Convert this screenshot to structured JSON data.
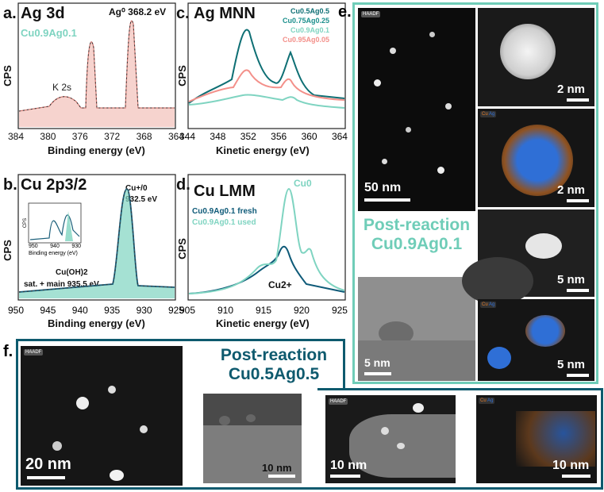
{
  "panel_a": {
    "letter": "a.",
    "title": "Ag 3d",
    "peak_label": "Ag⁰ 368.2 eV",
    "sample": "Cu0.9Ag0.1",
    "annotation": "K 2s",
    "ylabel": "CPS",
    "xlabel": "Binding energy (eV)",
    "xticks": [
      "384",
      "380",
      "376",
      "372",
      "368",
      "364"
    ],
    "colors": {
      "sample": "#7fd4c1",
      "fit": "#f4b6b0"
    }
  },
  "panel_b": {
    "letter": "b.",
    "title": "Cu 2p3/2",
    "peak_label_1": "Cu+/0",
    "peak_label_2": "932.5 eV",
    "annot_1": "Cu(OH)2",
    "annot_2": "sat. + main 935.5 eV",
    "ylabel": "CPS",
    "xlabel": "Binding energy (eV)",
    "xticks": [
      "950",
      "945",
      "940",
      "935",
      "930",
      "925"
    ],
    "inset": {
      "ylabel": "CPS",
      "xlabel": "Binding energy (eV)",
      "xticks": [
        "950",
        "940",
        "930"
      ]
    }
  },
  "panel_c": {
    "letter": "c.",
    "title": "Ag MNN",
    "ylabel": "CPS",
    "xlabel": "Kinetic energy (eV)",
    "xticks": [
      "344",
      "348",
      "352",
      "356",
      "360",
      "364"
    ],
    "legend": [
      {
        "label": "Cu0.5Ag0.5",
        "color": "#0e6f74"
      },
      {
        "label": "Cu0.75Ag0.25",
        "color": "#1b8f8c"
      },
      {
        "label": "Cu0.9Ag0.1",
        "color": "#7fd4c1"
      },
      {
        "label": "Cu0.95Ag0.05",
        "color": "#f3908a"
      }
    ]
  },
  "panel_d": {
    "letter": "d.",
    "title": "Cu LMM",
    "ylabel": "CPS",
    "xlabel": "Kinetic energy (eV)",
    "xticks": [
      "905",
      "910",
      "915",
      "920",
      "925"
    ],
    "peak_cu0": "Cu0",
    "peak_cu2": "Cu2+",
    "legend": [
      {
        "label": "Cu0.9Ag0.1 fresh",
        "color": "#0e5a78"
      },
      {
        "label": "Cu0.9Ag0.1 used",
        "color": "#7fd4c1"
      }
    ]
  },
  "panel_e": {
    "letter": "e.",
    "badge": "HAADF",
    "title_1": "Post-reaction",
    "title_2": "Cu0.9Ag0.1",
    "scalebars": [
      "50 nm",
      "2 nm",
      "2 nm",
      "5 nm",
      "5 nm",
      "5 nm"
    ],
    "eds_legend": [
      "Cu",
      "Ag"
    ],
    "colors": {
      "frame": "#6fcdb8",
      "cu": "#e07b2a",
      "ag": "#2f6fd6"
    }
  },
  "panel_f": {
    "letter": "f.",
    "badge": "HAADF",
    "title_1": "Post-reaction",
    "title_2": "Cu0.5Ag0.5",
    "scalebars": [
      "20 nm",
      "10 nm",
      "10 nm",
      "10 nm"
    ],
    "eds_legend": [
      "Cu",
      "Ag"
    ],
    "colors": {
      "frame": "#0e5a6e"
    }
  }
}
